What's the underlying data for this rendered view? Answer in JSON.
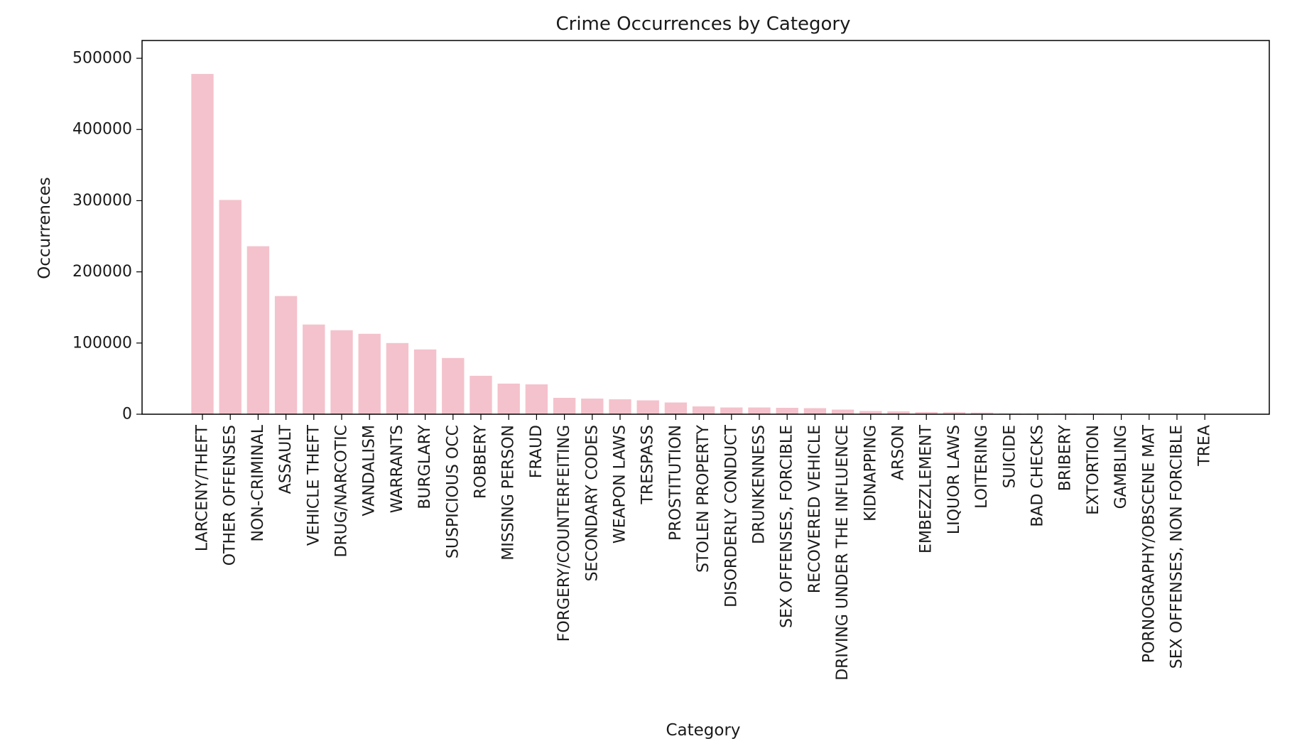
{
  "chart_data": {
    "type": "bar",
    "title": "Crime Occurrences by Category",
    "xlabel": "Category",
    "ylabel": "Occurrences",
    "ylim": [
      0,
      525000
    ],
    "yticks": [
      0,
      100000,
      200000,
      300000,
      400000,
      500000
    ],
    "ytick_labels": [
      "0",
      "100000",
      "200000",
      "300000",
      "400000",
      "500000"
    ],
    "grid": false,
    "bar_color": "#f4c2cc",
    "categories": [
      "LARCENY/THEFT",
      "OTHER OFFENSES",
      "NON-CRIMINAL",
      "ASSAULT",
      "VEHICLE THEFT",
      "DRUG/NARCOTIC",
      "VANDALISM",
      "WARRANTS",
      "BURGLARY",
      "SUSPICIOUS OCC",
      "ROBBERY",
      "MISSING PERSON",
      "FRAUD",
      "FORGERY/COUNTERFEITING",
      "SECONDARY CODES",
      "WEAPON LAWS",
      "TRESPASS",
      "PROSTITUTION",
      "STOLEN PROPERTY",
      "DISORDERLY CONDUCT",
      "DRUNKENNESS",
      "SEX OFFENSES, FORCIBLE",
      "RECOVERED VEHICLE",
      "DRIVING UNDER THE INFLUENCE",
      "KIDNAPPING",
      "ARSON",
      "EMBEZZLEMENT",
      "LIQUOR LAWS",
      "LOITERING",
      "SUICIDE",
      "BAD CHECKS",
      "BRIBERY",
      "EXTORTION",
      "GAMBLING",
      "PORNOGRAPHY/OBSCENE MAT",
      "SEX OFFENSES, NON FORCIBLE",
      "TREA"
    ],
    "values": [
      478000,
      301000,
      236000,
      166000,
      126000,
      118000,
      113000,
      100000,
      91000,
      79000,
      54000,
      43000,
      42000,
      23000,
      22000,
      21000,
      19500,
      16500,
      11000,
      9500,
      9500,
      9000,
      8500,
      6500,
      4500,
      4000,
      3000,
      2800,
      2300,
      1000,
      900,
      800,
      700,
      300,
      30,
      20,
      10
    ]
  }
}
